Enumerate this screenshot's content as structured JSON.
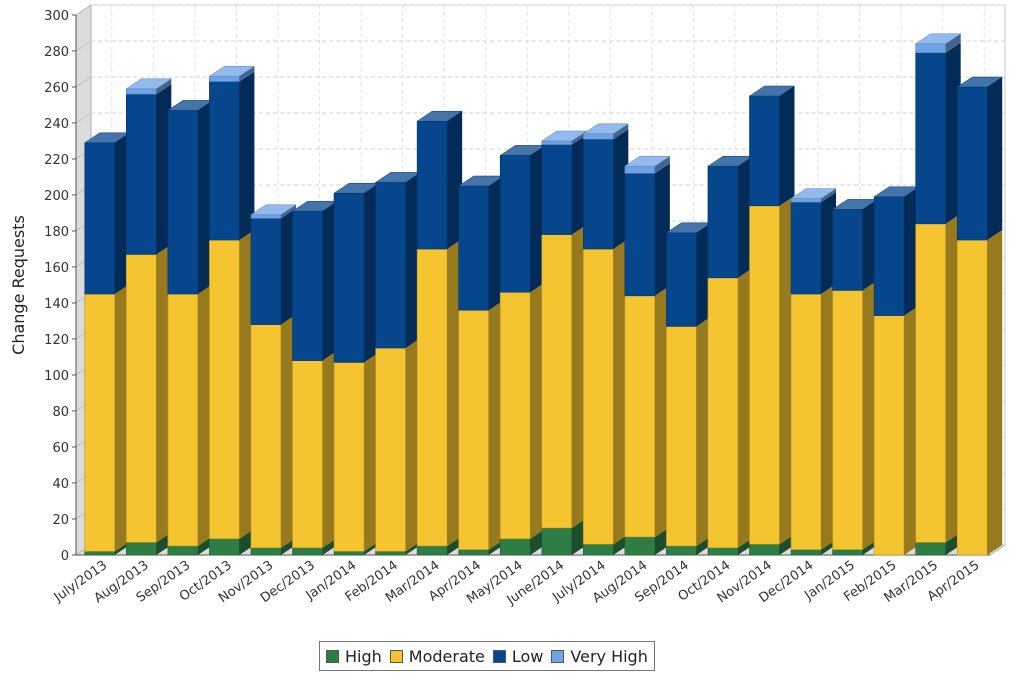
{
  "chart_data": {
    "type": "bar",
    "stacked": true,
    "title": "",
    "xlabel": "",
    "ylabel": "Change Requests",
    "ylim": [
      0,
      300
    ],
    "yticks": [
      0,
      20,
      40,
      60,
      80,
      100,
      120,
      140,
      160,
      180,
      200,
      220,
      240,
      260,
      280,
      300
    ],
    "grid": true,
    "legend_position": "bottom-center",
    "categories": [
      "July/2013",
      "Aug/2013",
      "Sep/2013",
      "Oct/2013",
      "Nov/2013",
      "Dec/2013",
      "Jan/2014",
      "Feb/2014",
      "Mar/2014",
      "Apr/2014",
      "May/2014",
      "June/2014",
      "July/2014",
      "Aug/2014",
      "Sep/2014",
      "Oct/2014",
      "Nov/2014",
      "Dec/2014",
      "Jan/2015",
      "Feb/2015",
      "Mar/2015",
      "Apr/2015"
    ],
    "series": [
      {
        "name": "High",
        "color": "#2e7d45",
        "values": [
          2,
          7,
          5,
          9,
          4,
          4,
          2,
          2,
          5,
          3,
          9,
          15,
          6,
          10,
          5,
          4,
          6,
          3,
          3,
          0,
          7,
          0
        ]
      },
      {
        "name": "Moderate",
        "color": "#f4c431",
        "values": [
          143,
          160,
          140,
          166,
          124,
          104,
          105,
          113,
          165,
          133,
          137,
          163,
          164,
          134,
          122,
          150,
          188,
          142,
          144,
          133,
          177,
          175
        ]
      },
      {
        "name": "Low",
        "color": "#05468c",
        "values": [
          84,
          89,
          102,
          88,
          59,
          83,
          94,
          92,
          71,
          69,
          76,
          50,
          61,
          68,
          52,
          62,
          61,
          51,
          45,
          66,
          95,
          85
        ]
      },
      {
        "name": "Very High",
        "color": "#6fa3e6",
        "values": [
          0,
          3,
          0,
          3,
          2,
          0,
          0,
          0,
          0,
          0,
          0,
          2,
          3,
          4,
          0,
          0,
          0,
          2,
          0,
          0,
          5,
          0
        ]
      }
    ]
  }
}
